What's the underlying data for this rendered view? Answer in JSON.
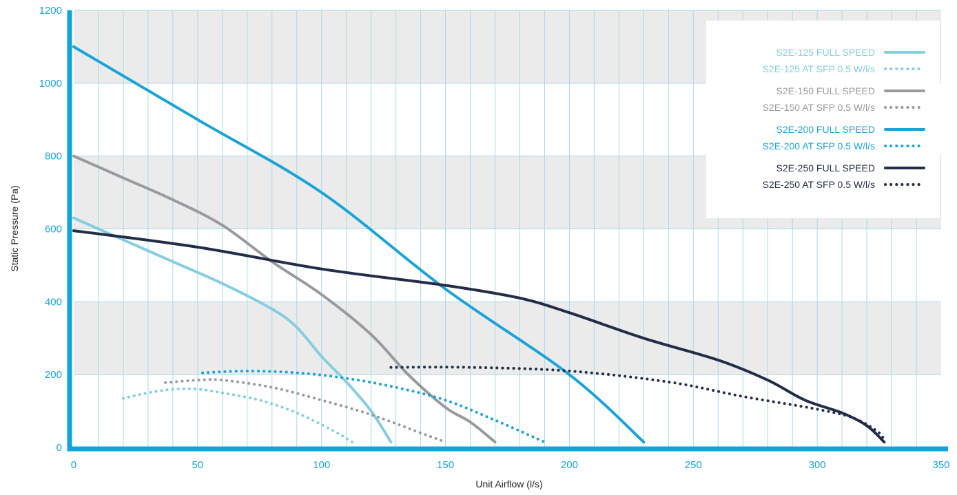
{
  "chart_data": {
    "type": "line",
    "title": "",
    "xlabel": "Unit Airflow (l/s)",
    "ylabel": "Static Pressure (Pa)",
    "xlim": [
      0,
      350
    ],
    "ylim": [
      0,
      1200
    ],
    "x_ticks": [
      0,
      50,
      100,
      150,
      200,
      250,
      300,
      350
    ],
    "y_ticks": [
      0,
      200,
      400,
      600,
      800,
      1000,
      1200
    ],
    "grid": true,
    "legend_position": "top-right",
    "colors": {
      "axis": "#0ea5dd",
      "band": "#ebebeb",
      "grid": "#a9d8ec"
    },
    "series": [
      {
        "name": "S2E-125 FULL SPEED",
        "color": "#86cde0",
        "style": "solid",
        "points": [
          [
            0,
            630
          ],
          [
            20,
            570
          ],
          [
            40,
            510
          ],
          [
            60,
            450
          ],
          [
            80,
            380
          ],
          [
            90,
            330
          ],
          [
            100,
            250
          ],
          [
            110,
            180
          ],
          [
            120,
            100
          ],
          [
            128,
            15
          ]
        ]
      },
      {
        "name": "S2E-125 AT SFP 0.5 W/l/s",
        "color": "#86cde0",
        "style": "dotted",
        "points": [
          [
            20,
            135
          ],
          [
            30,
            150
          ],
          [
            40,
            160
          ],
          [
            50,
            160
          ],
          [
            60,
            150
          ],
          [
            75,
            130
          ],
          [
            90,
            95
          ],
          [
            105,
            45
          ],
          [
            113,
            12
          ]
        ]
      },
      {
        "name": "S2E-150 FULL SPEED",
        "color": "#999a9e",
        "style": "solid",
        "points": [
          [
            0,
            800
          ],
          [
            20,
            740
          ],
          [
            40,
            680
          ],
          [
            60,
            610
          ],
          [
            80,
            510
          ],
          [
            100,
            420
          ],
          [
            120,
            310
          ],
          [
            135,
            200
          ],
          [
            150,
            110
          ],
          [
            160,
            70
          ],
          [
            170,
            15
          ]
        ]
      },
      {
        "name": "S2E-150 AT SFP 0.5 W/l/s",
        "color": "#999a9e",
        "style": "dotted",
        "points": [
          [
            37,
            178
          ],
          [
            50,
            185
          ],
          [
            60,
            185
          ],
          [
            80,
            165
          ],
          [
            100,
            130
          ],
          [
            120,
            90
          ],
          [
            140,
            40
          ],
          [
            150,
            15
          ]
        ]
      },
      {
        "name": "S2E-200 FULL SPEED",
        "color": "#1aa3d9",
        "style": "solid",
        "points": [
          [
            0,
            1100
          ],
          [
            50,
            900
          ],
          [
            100,
            700
          ],
          [
            150,
            435
          ],
          [
            200,
            200
          ],
          [
            230,
            15
          ]
        ]
      },
      {
        "name": "S2E-200 AT SFP 0.5 W/l/s",
        "color": "#1aa3d9",
        "style": "dotted",
        "points": [
          [
            52,
            205
          ],
          [
            70,
            210
          ],
          [
            90,
            205
          ],
          [
            110,
            190
          ],
          [
            130,
            165
          ],
          [
            150,
            130
          ],
          [
            170,
            75
          ],
          [
            190,
            15
          ]
        ]
      },
      {
        "name": "S2E-250 FULL SPEED",
        "color": "#232d48",
        "style": "solid",
        "points": [
          [
            0,
            595
          ],
          [
            50,
            550
          ],
          [
            100,
            490
          ],
          [
            150,
            445
          ],
          [
            180,
            410
          ],
          [
            200,
            370
          ],
          [
            230,
            300
          ],
          [
            260,
            240
          ],
          [
            280,
            185
          ],
          [
            295,
            130
          ],
          [
            310,
            95
          ],
          [
            320,
            60
          ],
          [
            327,
            15
          ]
        ]
      },
      {
        "name": "S2E-250 AT SFP 0.5 W/l/s",
        "color": "#232d48",
        "style": "dotted",
        "points": [
          [
            128,
            220
          ],
          [
            160,
            220
          ],
          [
            200,
            210
          ],
          [
            240,
            180
          ],
          [
            270,
            140
          ],
          [
            300,
            105
          ],
          [
            315,
            80
          ],
          [
            325,
            40
          ],
          [
            327,
            15
          ]
        ]
      }
    ]
  }
}
